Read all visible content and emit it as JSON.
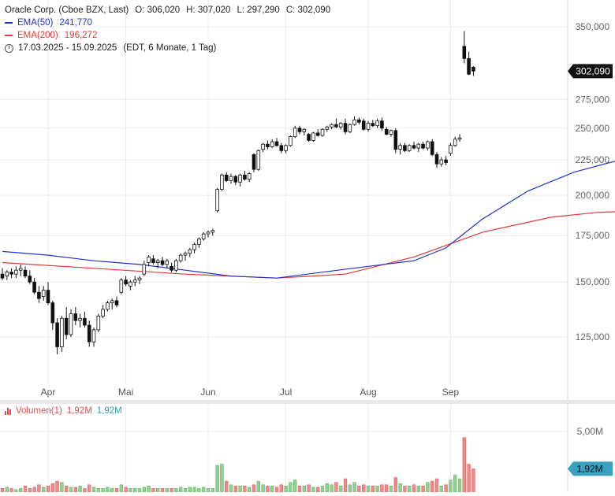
{
  "header": {
    "title": "Oracle Corp. (Cboe BZX, Last)",
    "ohlc": {
      "o_label": "O:",
      "o": "306,020",
      "h_label": "H:",
      "h": "307,020",
      "l_label": "L:",
      "l": "297,290",
      "c_label": "C:",
      "c": "302,090"
    },
    "ema50_label": "EMA(50)",
    "ema50_value": "241,770",
    "ema200_label": "EMA(200)",
    "ema200_value": "196,272",
    "range": "17.03.2025 - 15.09.2025",
    "range_note": "(EDT, 6 Monate, 1 Tag)"
  },
  "volume_legend": {
    "label": "Volumen(1)",
    "value_red": "1,92M",
    "value_blue": "1,92M"
  },
  "last_price_tag": "302,090",
  "last_volume_tag": "1,92M",
  "colors": {
    "up": "#ffffff",
    "down": "#111111",
    "ema50": "#2233cc",
    "ema200": "#e53935",
    "vol_up": "#8fd08f",
    "vol_down": "#ef8a8a",
    "price_tag": "#111111",
    "vol_tag": "#3aa0c0"
  },
  "chart_data": {
    "type": "candlestick",
    "y_scale": "log",
    "price_ticks": [
      "350,000",
      "275,000",
      "250,000",
      "225,000",
      "200,000",
      "175,000",
      "150,000",
      "125,000"
    ],
    "x_ticks": [
      "Apr",
      "Mai",
      "Jun",
      "Jul",
      "Aug",
      "Sep"
    ],
    "volume_ticks": [
      "5,00M"
    ],
    "ema50": [
      [
        0,
        166
      ],
      [
        10,
        164
      ],
      [
        20,
        161
      ],
      [
        30,
        159
      ],
      [
        40,
        156
      ],
      [
        50,
        153
      ],
      [
        60,
        152
      ],
      [
        70,
        155
      ],
      [
        80,
        158
      ],
      [
        90,
        161
      ],
      [
        97,
        168
      ],
      [
        105,
        185
      ],
      [
        115,
        203
      ],
      [
        125,
        216
      ],
      [
        135,
        225
      ],
      [
        140,
        228
      ],
      [
        148,
        228
      ],
      [
        153,
        228
      ],
      [
        157,
        235
      ],
      [
        158,
        241.77
      ]
    ],
    "ema200": [
      [
        0,
        160
      ],
      [
        20,
        157
      ],
      [
        40,
        154
      ],
      [
        60,
        152
      ],
      [
        75,
        154
      ],
      [
        90,
        163
      ],
      [
        105,
        177
      ],
      [
        120,
        186
      ],
      [
        130,
        189
      ],
      [
        140,
        190
      ],
      [
        150,
        191
      ],
      [
        158,
        196.27
      ]
    ],
    "candles": [
      {
        "d": 0,
        "o": 154,
        "h": 157,
        "l": 151,
        "c": 152
      },
      {
        "d": 1,
        "o": 153,
        "h": 156,
        "l": 151,
        "c": 155
      },
      {
        "d": 2,
        "o": 155,
        "h": 157,
        "l": 152,
        "c": 154
      },
      {
        "d": 3,
        "o": 154,
        "h": 158,
        "l": 152,
        "c": 156
      },
      {
        "d": 4,
        "o": 156,
        "h": 159,
        "l": 153,
        "c": 157
      },
      {
        "d": 5,
        "o": 156,
        "h": 158,
        "l": 152,
        "c": 153
      },
      {
        "d": 6,
        "o": 153,
        "h": 156,
        "l": 149,
        "c": 150
      },
      {
        "d": 7,
        "o": 150,
        "h": 152,
        "l": 144,
        "c": 145
      },
      {
        "d": 8,
        "o": 145,
        "h": 148,
        "l": 140,
        "c": 142
      },
      {
        "d": 9,
        "o": 143,
        "h": 148,
        "l": 141,
        "c": 146
      },
      {
        "d": 10,
        "o": 146,
        "h": 150,
        "l": 139,
        "c": 140
      },
      {
        "d": 11,
        "o": 140,
        "h": 141,
        "l": 128,
        "c": 131
      },
      {
        "d": 12,
        "o": 131,
        "h": 133,
        "l": 118,
        "c": 121
      },
      {
        "d": 13,
        "o": 121,
        "h": 134,
        "l": 119,
        "c": 133
      },
      {
        "d": 14,
        "o": 133,
        "h": 138,
        "l": 124,
        "c": 126
      },
      {
        "d": 15,
        "o": 126,
        "h": 137,
        "l": 125,
        "c": 135
      },
      {
        "d": 16,
        "o": 135,
        "h": 138,
        "l": 130,
        "c": 132
      },
      {
        "d": 17,
        "o": 132,
        "h": 135,
        "l": 129,
        "c": 133
      },
      {
        "d": 18,
        "o": 133,
        "h": 136,
        "l": 129,
        "c": 130
      },
      {
        "d": 19,
        "o": 130,
        "h": 132,
        "l": 121,
        "c": 123
      },
      {
        "d": 20,
        "o": 123,
        "h": 129,
        "l": 121,
        "c": 128
      },
      {
        "d": 21,
        "o": 128,
        "h": 135,
        "l": 127,
        "c": 134
      },
      {
        "d": 22,
        "o": 134,
        "h": 139,
        "l": 133,
        "c": 137
      },
      {
        "d": 23,
        "o": 137,
        "h": 141,
        "l": 136,
        "c": 140
      },
      {
        "d": 24,
        "o": 140,
        "h": 142,
        "l": 137,
        "c": 141
      },
      {
        "d": 25,
        "o": 141,
        "h": 143,
        "l": 138,
        "c": 139
      },
      {
        "d": 26,
        "o": 145,
        "h": 152,
        "l": 144,
        "c": 151
      },
      {
        "d": 27,
        "o": 151,
        "h": 153,
        "l": 148,
        "c": 149
      },
      {
        "d": 28,
        "o": 148,
        "h": 151,
        "l": 146,
        "c": 150
      },
      {
        "d": 29,
        "o": 150,
        "h": 153,
        "l": 148,
        "c": 151
      },
      {
        "d": 30,
        "o": 151,
        "h": 153,
        "l": 149,
        "c": 152
      },
      {
        "d": 31,
        "o": 154,
        "h": 161,
        "l": 153,
        "c": 159
      },
      {
        "d": 32,
        "o": 160,
        "h": 164,
        "l": 158,
        "c": 163
      },
      {
        "d": 33,
        "o": 162,
        "h": 164,
        "l": 159,
        "c": 160
      },
      {
        "d": 34,
        "o": 160,
        "h": 162,
        "l": 157,
        "c": 161
      },
      {
        "d": 35,
        "o": 161,
        "h": 163,
        "l": 158,
        "c": 159
      },
      {
        "d": 36,
        "o": 159,
        "h": 162,
        "l": 157,
        "c": 161
      },
      {
        "d": 37,
        "o": 158,
        "h": 160,
        "l": 155,
        "c": 156
      },
      {
        "d": 38,
        "o": 156,
        "h": 162,
        "l": 155,
        "c": 161
      },
      {
        "d": 39,
        "o": 161,
        "h": 165,
        "l": 160,
        "c": 164
      },
      {
        "d": 40,
        "o": 164,
        "h": 166,
        "l": 161,
        "c": 165
      },
      {
        "d": 41,
        "o": 165,
        "h": 168,
        "l": 163,
        "c": 167
      },
      {
        "d": 42,
        "o": 167,
        "h": 171,
        "l": 165,
        "c": 170
      },
      {
        "d": 43,
        "o": 170,
        "h": 174,
        "l": 168,
        "c": 173
      },
      {
        "d": 44,
        "o": 173,
        "h": 177,
        "l": 172,
        "c": 176
      },
      {
        "d": 45,
        "o": 176,
        "h": 178,
        "l": 174,
        "c": 177
      },
      {
        "d": 46,
        "o": 177,
        "h": 179,
        "l": 175,
        "c": 178
      },
      {
        "d": 47,
        "o": 190,
        "h": 205,
        "l": 189,
        "c": 204
      },
      {
        "d": 48,
        "o": 204,
        "h": 215,
        "l": 203,
        "c": 214
      },
      {
        "d": 49,
        "o": 214,
        "h": 216,
        "l": 209,
        "c": 210
      },
      {
        "d": 50,
        "o": 210,
        "h": 215,
        "l": 208,
        "c": 213
      },
      {
        "d": 51,
        "o": 213,
        "h": 214,
        "l": 207,
        "c": 209
      },
      {
        "d": 52,
        "o": 209,
        "h": 215,
        "l": 206,
        "c": 214
      },
      {
        "d": 53,
        "o": 214,
        "h": 217,
        "l": 210,
        "c": 211
      },
      {
        "d": 54,
        "o": 211,
        "h": 216,
        "l": 209,
        "c": 215
      },
      {
        "d": 55,
        "o": 229,
        "h": 230,
        "l": 216,
        "c": 218
      },
      {
        "d": 56,
        "o": 218,
        "h": 233,
        "l": 217,
        "c": 232
      },
      {
        "d": 57,
        "o": 233,
        "h": 238,
        "l": 231,
        "c": 237
      },
      {
        "d": 58,
        "o": 237,
        "h": 240,
        "l": 233,
        "c": 235
      },
      {
        "d": 59,
        "o": 235,
        "h": 241,
        "l": 234,
        "c": 239
      },
      {
        "d": 60,
        "o": 239,
        "h": 242,
        "l": 235,
        "c": 236
      },
      {
        "d": 61,
        "o": 236,
        "h": 238,
        "l": 230,
        "c": 232
      },
      {
        "d": 62,
        "o": 232,
        "h": 237,
        "l": 230,
        "c": 236
      },
      {
        "d": 63,
        "o": 236,
        "h": 244,
        "l": 235,
        "c": 243
      },
      {
        "d": 64,
        "o": 243,
        "h": 252,
        "l": 242,
        "c": 250
      },
      {
        "d": 65,
        "o": 250,
        "h": 252,
        "l": 245,
        "c": 247
      },
      {
        "d": 66,
        "o": 247,
        "h": 250,
        "l": 244,
        "c": 249
      },
      {
        "d": 67,
        "o": 245,
        "h": 246,
        "l": 239,
        "c": 240
      },
      {
        "d": 68,
        "o": 240,
        "h": 247,
        "l": 239,
        "c": 246
      },
      {
        "d": 69,
        "o": 246,
        "h": 249,
        "l": 243,
        "c": 244
      },
      {
        "d": 70,
        "o": 244,
        "h": 250,
        "l": 243,
        "c": 249
      },
      {
        "d": 71,
        "o": 249,
        "h": 252,
        "l": 247,
        "c": 251
      },
      {
        "d": 72,
        "o": 251,
        "h": 254,
        "l": 249,
        "c": 253
      },
      {
        "d": 73,
        "o": 253,
        "h": 258,
        "l": 250,
        "c": 251
      },
      {
        "d": 74,
        "o": 251,
        "h": 255,
        "l": 249,
        "c": 254
      },
      {
        "d": 75,
        "o": 254,
        "h": 258,
        "l": 245,
        "c": 247
      },
      {
        "d": 76,
        "o": 247,
        "h": 254,
        "l": 246,
        "c": 253
      },
      {
        "d": 77,
        "o": 253,
        "h": 260,
        "l": 252,
        "c": 257
      },
      {
        "d": 78,
        "o": 257,
        "h": 259,
        "l": 253,
        "c": 255
      },
      {
        "d": 79,
        "o": 256,
        "h": 258,
        "l": 248,
        "c": 249
      },
      {
        "d": 80,
        "o": 249,
        "h": 256,
        "l": 247,
        "c": 254
      },
      {
        "d": 81,
        "o": 254,
        "h": 257,
        "l": 251,
        "c": 252
      },
      {
        "d": 82,
        "o": 252,
        "h": 258,
        "l": 250,
        "c": 256
      },
      {
        "d": 83,
        "o": 256,
        "h": 259,
        "l": 248,
        "c": 250
      },
      {
        "d": 84,
        "o": 249,
        "h": 251,
        "l": 244,
        "c": 245
      },
      {
        "d": 85,
        "o": 245,
        "h": 249,
        "l": 243,
        "c": 248
      },
      {
        "d": 86,
        "o": 248,
        "h": 250,
        "l": 230,
        "c": 233
      },
      {
        "d": 87,
        "o": 233,
        "h": 238,
        "l": 229,
        "c": 236
      },
      {
        "d": 88,
        "o": 236,
        "h": 238,
        "l": 231,
        "c": 232
      },
      {
        "d": 89,
        "o": 232,
        "h": 237,
        "l": 231,
        "c": 236
      },
      {
        "d": 90,
        "o": 236,
        "h": 239,
        "l": 233,
        "c": 234
      },
      {
        "d": 91,
        "o": 234,
        "h": 238,
        "l": 231,
        "c": 237
      },
      {
        "d": 92,
        "o": 237,
        "h": 239,
        "l": 233,
        "c": 234
      },
      {
        "d": 93,
        "o": 234,
        "h": 240,
        "l": 232,
        "c": 239
      },
      {
        "d": 94,
        "o": 239,
        "h": 241,
        "l": 228,
        "c": 229
      },
      {
        "d": 95,
        "o": 229,
        "h": 231,
        "l": 219,
        "c": 222
      },
      {
        "d": 96,
        "o": 222,
        "h": 227,
        "l": 220,
        "c": 225
      },
      {
        "d": 97,
        "o": 225,
        "h": 228,
        "l": 221,
        "c": 223
      },
      {
        "d": 98,
        "o": 230,
        "h": 238,
        "l": 228,
        "c": 236
      },
      {
        "d": 99,
        "o": 236,
        "h": 243,
        "l": 235,
        "c": 241
      },
      {
        "d": 100,
        "o": 241,
        "h": 245,
        "l": 239,
        "c": 242
      },
      {
        "d": 101,
        "o": 328,
        "h": 345,
        "l": 310,
        "c": 315
      },
      {
        "d": 102,
        "o": 315,
        "h": 322,
        "l": 298,
        "c": 299
      },
      {
        "d": 103,
        "o": 306.02,
        "h": 307.02,
        "l": 297.29,
        "c": 302.09
      }
    ],
    "volume_m": [
      0.3,
      0.4,
      0.3,
      0.2,
      0.3,
      0.5,
      0.3,
      0.4,
      0.6,
      0.4,
      0.5,
      0.7,
      0.9,
      0.8,
      0.5,
      0.4,
      0.4,
      0.5,
      0.3,
      0.6,
      0.4,
      0.3,
      0.3,
      0.4,
      0.3,
      0.3,
      0.6,
      0.4,
      0.3,
      0.3,
      0.3,
      0.4,
      0.5,
      0.3,
      0.3,
      0.3,
      0.3,
      0.3,
      0.3,
      0.4,
      0.3,
      0.4,
      0.4,
      0.3,
      0.4,
      0.3,
      0.3,
      2.2,
      2.3,
      0.9,
      0.6,
      0.5,
      0.5,
      0.5,
      0.4,
      0.6,
      0.9,
      0.6,
      0.5,
      0.5,
      0.4,
      0.6,
      0.5,
      0.8,
      1.0,
      0.5,
      0.5,
      0.6,
      0.4,
      0.4,
      0.5,
      0.7,
      0.6,
      0.8,
      0.5,
      1.1,
      0.6,
      0.8,
      0.5,
      0.6,
      0.5,
      0.5,
      0.5,
      0.6,
      0.6,
      0.5,
      1.2,
      0.7,
      0.5,
      0.5,
      0.6,
      0.5,
      0.5,
      0.8,
      0.9,
      1.1,
      0.5,
      0.6,
      1.0,
      1.4,
      1.1,
      4.5,
      2.3,
      1.92
    ]
  }
}
